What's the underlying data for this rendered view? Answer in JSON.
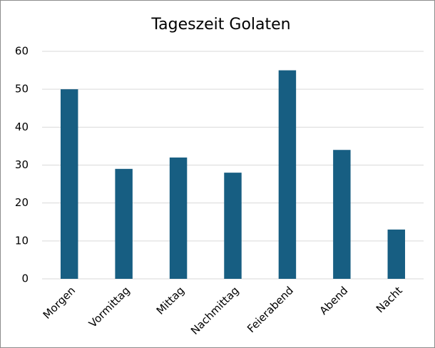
{
  "chart_data": {
    "type": "bar",
    "title": "Tageszeit Golaten",
    "categories": [
      "Morgen",
      "Vormittag",
      "Mittag",
      "Nachmittag",
      "Feierabend",
      "Abend",
      "Nacht"
    ],
    "values": [
      50,
      29,
      32,
      28,
      55,
      34,
      13
    ],
    "color": "#175e82",
    "ylim": [
      0,
      60
    ],
    "yticks": [
      0,
      10,
      20,
      30,
      40,
      50,
      60
    ],
    "grid": true
  }
}
